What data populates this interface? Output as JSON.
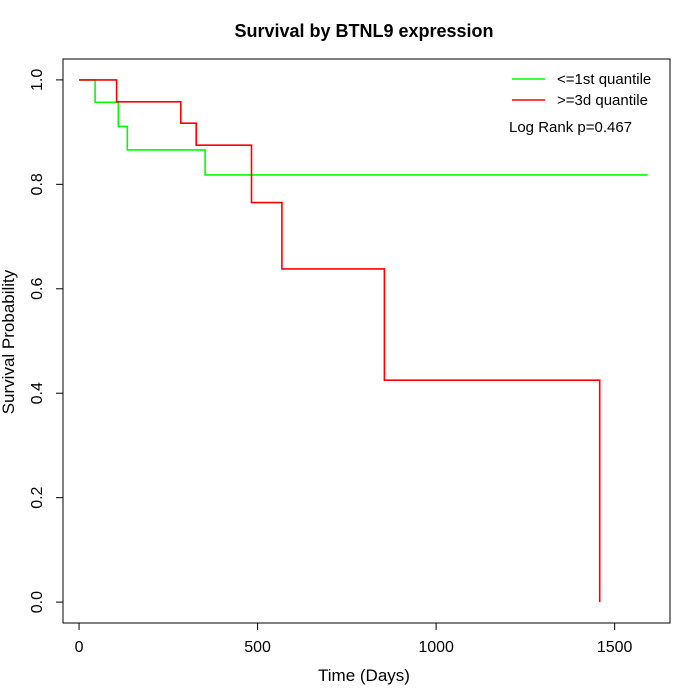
{
  "chart_data": {
    "type": "line",
    "title": "Survival by BTNL9 expression",
    "xlabel": "Time (Days)",
    "ylabel": "Survival Probability",
    "xlim": [
      -45,
      1655
    ],
    "ylim": [
      -0.04,
      1.04
    ],
    "xticks": [
      0,
      500,
      1000,
      1500
    ],
    "yticks": [
      0.0,
      0.2,
      0.4,
      0.6,
      0.8,
      1.0
    ],
    "xtick_labels": [
      "0",
      "500",
      "1000",
      "1500"
    ],
    "ytick_labels": [
      "0.0",
      "0.2",
      "0.4",
      "0.6",
      "0.8",
      "1.0"
    ],
    "legend_position": "top-right",
    "annotation": "Log Rank p=0.467",
    "series": [
      {
        "name": "<=1st quantile",
        "color": "#00ff00",
        "step_points": [
          [
            0,
            1.0
          ],
          [
            45,
            1.0
          ],
          [
            45,
            0.957
          ],
          [
            110,
            0.957
          ],
          [
            110,
            0.911
          ],
          [
            135,
            0.911
          ],
          [
            135,
            0.866
          ],
          [
            353,
            0.866
          ],
          [
            353,
            0.818
          ],
          [
            1592,
            0.818
          ]
        ]
      },
      {
        "name": ">=3d quantile",
        "color": "#ff0000",
        "step_points": [
          [
            0,
            1.0
          ],
          [
            105,
            1.0
          ],
          [
            105,
            0.958
          ],
          [
            285,
            0.958
          ],
          [
            285,
            0.917
          ],
          [
            328,
            0.917
          ],
          [
            328,
            0.875
          ],
          [
            483,
            0.875
          ],
          [
            483,
            0.765
          ],
          [
            568,
            0.765
          ],
          [
            568,
            0.638
          ],
          [
            855,
            0.638
          ],
          [
            855,
            0.425
          ],
          [
            1458,
            0.425
          ],
          [
            1458,
            0.0
          ]
        ]
      }
    ]
  }
}
